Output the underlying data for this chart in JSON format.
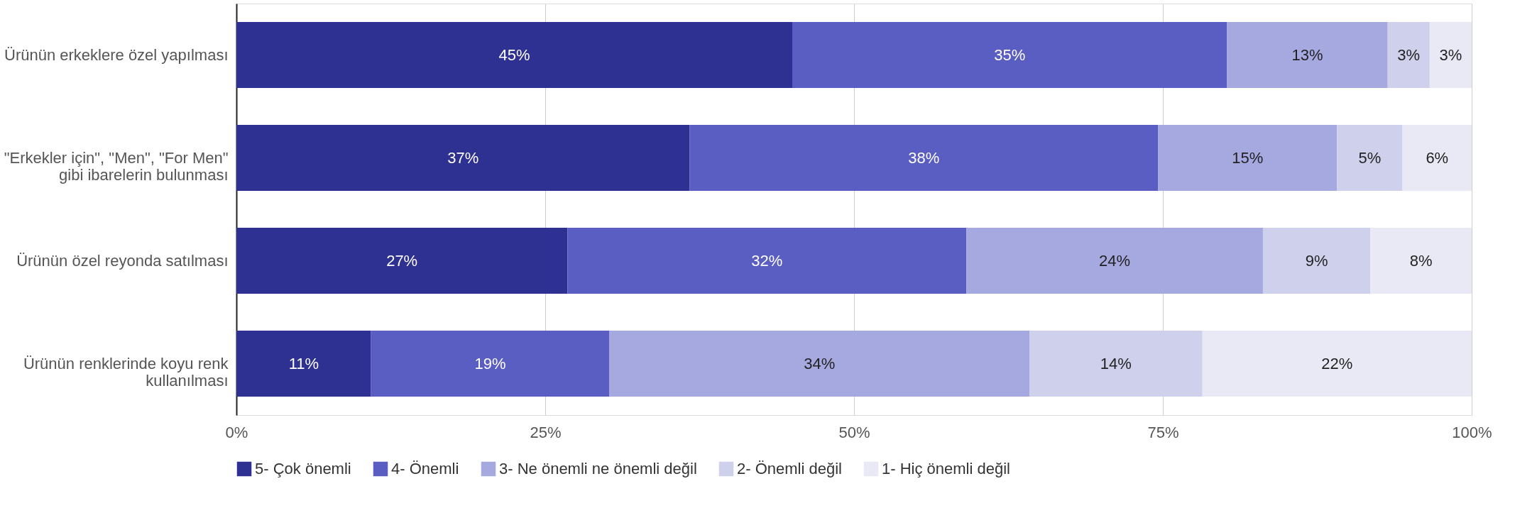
{
  "chart_data": {
    "type": "bar",
    "orientation": "horizontal",
    "stacked": true,
    "categories": [
      "Ürünün erkeklere özel yapılması",
      "\"Erkekler için\", \"Men\", \"For Men\" gibi ibarelerin bulunması",
      "Ürünün özel reyonda satılması",
      "Ürünün renklerinde koyu renk kullanılması"
    ],
    "series": [
      {
        "name": "5- Çok önemli",
        "color": "#2e3192",
        "values": [
          45.0,
          36.7,
          26.8,
          10.9
        ],
        "value_labels": [
          "45%",
          "37%",
          "27%",
          "11%"
        ]
      },
      {
        "name": "4- Önemli",
        "color": "#5a5ec2",
        "values": [
          35.2,
          37.9,
          32.3,
          19.3
        ],
        "value_labels": [
          "35%",
          "38%",
          "32%",
          "19%"
        ]
      },
      {
        "name": "3- Ne önemli ne önemli değil",
        "color": "#a6a8e0",
        "values": [
          13.0,
          14.5,
          24.0,
          34.0
        ],
        "value_labels": [
          "13%",
          "15%",
          "24%",
          "34%"
        ]
      },
      {
        "name": "2- Önemli değil",
        "color": "#cfd0ec",
        "values": [
          3.4,
          5.3,
          8.7,
          14.0
        ],
        "value_labels": [
          "3%",
          "5%",
          "9%",
          "14%"
        ]
      },
      {
        "name": "1- Hiç önemli değil",
        "color": "#e9e9f5",
        "values": [
          3.4,
          5.6,
          8.2,
          21.8
        ],
        "value_labels": [
          "3%",
          "6%",
          "8%",
          "22%"
        ]
      }
    ],
    "xlim": [
      0,
      100
    ],
    "xticks": [
      {
        "value": 0,
        "label": "0%"
      },
      {
        "value": 25,
        "label": "25%"
      },
      {
        "value": 50,
        "label": "50%"
      },
      {
        "value": 75,
        "label": "75%"
      },
      {
        "value": 100,
        "label": "100%"
      }
    ],
    "grid": "x",
    "legend": "bottom"
  }
}
